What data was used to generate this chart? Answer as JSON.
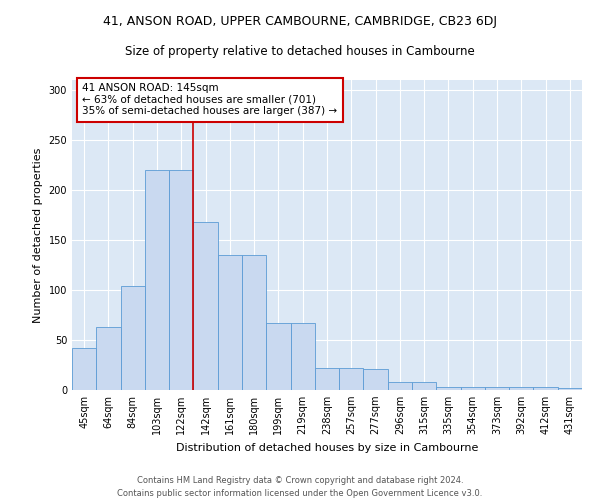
{
  "title_line1": "41, ANSON ROAD, UPPER CAMBOURNE, CAMBRIDGE, CB23 6DJ",
  "title_line2": "Size of property relative to detached houses in Cambourne",
  "xlabel": "Distribution of detached houses by size in Cambourne",
  "ylabel": "Number of detached properties",
  "categories": [
    "45sqm",
    "64sqm",
    "84sqm",
    "103sqm",
    "122sqm",
    "142sqm",
    "161sqm",
    "180sqm",
    "199sqm",
    "219sqm",
    "238sqm",
    "257sqm",
    "277sqm",
    "296sqm",
    "315sqm",
    "335sqm",
    "354sqm",
    "373sqm",
    "392sqm",
    "412sqm",
    "431sqm"
  ],
  "values": [
    42,
    63,
    104,
    220,
    220,
    168,
    135,
    135,
    67,
    67,
    22,
    22,
    21,
    8,
    8,
    3,
    3,
    3,
    3,
    3,
    2
  ],
  "bar_color": "#c9d9f0",
  "bar_edge_color": "#5b9bd5",
  "annotation_line1": "41 ANSON ROAD: 145sqm",
  "annotation_line2": "← 63% of detached houses are smaller (701)",
  "annotation_line3": "35% of semi-detached houses are larger (387) →",
  "vline_color": "#cc0000",
  "annotation_box_color": "#ffffff",
  "annotation_box_edge": "#cc0000",
  "bg_color": "#dce8f5",
  "footer1": "Contains HM Land Registry data © Crown copyright and database right 2024.",
  "footer2": "Contains public sector information licensed under the Open Government Licence v3.0.",
  "ylim": [
    0,
    310
  ],
  "title_fontsize": 9,
  "subtitle_fontsize": 8.5,
  "ylabel_fontsize": 8,
  "xlabel_fontsize": 8,
  "tick_fontsize": 7,
  "footer_fontsize": 6,
  "ann_fontsize": 7.5
}
